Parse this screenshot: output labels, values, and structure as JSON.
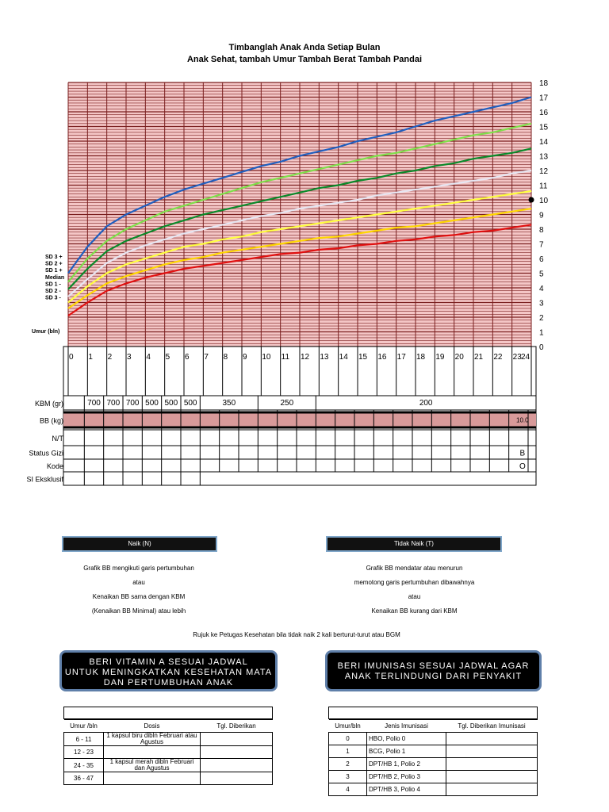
{
  "header": {
    "line1": "Timbanglah Anak Anda Setiap Bulan",
    "line2": "Anak Sehat, tambah Umur Tambah Berat Tambah Pandai"
  },
  "chart_data": {
    "type": "line",
    "xlabel": "Umur (bln)",
    "ylabel": "",
    "xlim": [
      0,
      24
    ],
    "ylim": [
      0,
      18
    ],
    "x_ticks": [
      "0",
      "1",
      "2",
      "3",
      "4",
      "5",
      "6",
      "7",
      "8",
      "9",
      "10",
      "11",
      "12",
      "13",
      "14",
      "15",
      "16",
      "17",
      "18",
      "19",
      "20",
      "21",
      "22",
      "23",
      "24"
    ],
    "y_ticks": [
      "0",
      "1",
      "2",
      "3",
      "4",
      "5",
      "6",
      "7",
      "8",
      "9",
      "10",
      "11",
      "12",
      "13",
      "14",
      "15",
      "16",
      "17",
      "18"
    ],
    "curve_labels": [
      "SD 3 +",
      "SD 2 +",
      "SD 1 +",
      "Median",
      "SD 1 -",
      "SD 2 -",
      "SD 3 -"
    ],
    "x": [
      0,
      1,
      2,
      3,
      4,
      5,
      6,
      7,
      8,
      9,
      10,
      11,
      12,
      13,
      14,
      15,
      16,
      17,
      18,
      19,
      20,
      21,
      22,
      23,
      24
    ],
    "series": [
      {
        "name": "SD 3 +",
        "color": "#1f5fbf",
        "values": [
          5.0,
          6.8,
          8.2,
          9.0,
          9.6,
          10.2,
          10.7,
          11.1,
          11.5,
          11.9,
          12.3,
          12.6,
          13.0,
          13.3,
          13.6,
          14.0,
          14.3,
          14.6,
          15.0,
          15.4,
          15.7,
          16.0,
          16.3,
          16.6,
          17.0
        ]
      },
      {
        "name": "SD 2 +",
        "color": "#7ee04a",
        "values": [
          4.4,
          6.0,
          7.2,
          8.0,
          8.6,
          9.2,
          9.6,
          10.0,
          10.4,
          10.8,
          11.2,
          11.5,
          11.8,
          12.1,
          12.4,
          12.7,
          13.0,
          13.2,
          13.5,
          13.8,
          14.1,
          14.4,
          14.6,
          14.9,
          15.2
        ]
      },
      {
        "name": "SD 1 +",
        "color": "#0a8a2a",
        "values": [
          3.9,
          5.3,
          6.5,
          7.2,
          7.7,
          8.2,
          8.6,
          9.0,
          9.3,
          9.6,
          9.9,
          10.2,
          10.5,
          10.8,
          11.0,
          11.3,
          11.5,
          11.8,
          12.0,
          12.3,
          12.5,
          12.8,
          13.0,
          13.2,
          13.5
        ]
      },
      {
        "name": "Median",
        "color": "#e6e6f2",
        "values": [
          3.4,
          4.6,
          5.7,
          6.4,
          6.9,
          7.3,
          7.7,
          8.0,
          8.3,
          8.6,
          8.9,
          9.1,
          9.4,
          9.6,
          9.8,
          10.0,
          10.3,
          10.5,
          10.7,
          10.9,
          11.1,
          11.3,
          11.5,
          11.8,
          12.0
        ]
      },
      {
        "name": "SD 1 -",
        "color": "#ffff40",
        "values": [
          3.0,
          4.1,
          5.0,
          5.6,
          6.0,
          6.4,
          6.8,
          7.0,
          7.3,
          7.5,
          7.8,
          8.0,
          8.2,
          8.4,
          8.6,
          8.8,
          9.0,
          9.2,
          9.4,
          9.6,
          9.8,
          10.0,
          10.2,
          10.4,
          10.6
        ]
      },
      {
        "name": "SD 2 -",
        "color": "#ffd700",
        "values": [
          2.6,
          3.5,
          4.3,
          4.8,
          5.2,
          5.6,
          5.9,
          6.1,
          6.4,
          6.6,
          6.8,
          7.0,
          7.2,
          7.4,
          7.5,
          7.7,
          7.9,
          8.1,
          8.2,
          8.4,
          8.6,
          8.8,
          9.0,
          9.2,
          9.4
        ]
      },
      {
        "name": "SD 3 -",
        "color": "#e01010",
        "values": [
          2.1,
          3.0,
          3.8,
          4.3,
          4.7,
          5.0,
          5.3,
          5.5,
          5.7,
          5.9,
          6.1,
          6.3,
          6.4,
          6.6,
          6.7,
          6.9,
          7.0,
          7.2,
          7.3,
          7.5,
          7.6,
          7.8,
          7.9,
          8.1,
          8.3
        ]
      }
    ],
    "marker": {
      "x": 24,
      "y": 10
    },
    "grid": true,
    "background": "#f4c6c6",
    "grid_color": "#7a1f1f"
  },
  "rows": {
    "kbm_label": "KBM (gr)",
    "kbm_cells": [
      "700",
      "700",
      "700",
      "500",
      "500",
      "500",
      "350",
      "250",
      "200"
    ],
    "bb_label": "BB (kg)",
    "bb_value": "10.0",
    "nt_label": "N/T",
    "status_label": "Status Gizi",
    "status_value": "B",
    "kode_label": "Kode",
    "kode_value": "O",
    "si_label": "SI Eksklusif"
  },
  "legend": {
    "naik_label": "Naik (N)",
    "tidak_naik_label": "Tidak Naik (T)",
    "naik_text": [
      "Grafik BB mengikuti garis pertumbuhan",
      "atau",
      "Kenaikan BB sama dengan KBM",
      "(Kenaikan BB Minimal) atau lebih"
    ],
    "tidak_text": [
      "Grafik BB mendatar atau menurun",
      "memotong garis pertumbuhan dibawahnya",
      "atau",
      "Kenaikan BB kurang dari KBM"
    ],
    "rujuk": "Rujuk ke Petugas Kesehatan bila tidak naik 2 kali berturut-turut atau BGM"
  },
  "vitamin": {
    "line1": "BERI VITAMIN A SESUAI JADWAL",
    "line2": "UNTUK MENINGKATKAN KESEHATAN MATA",
    "line3": "DAN PERTUMBUHAN ANAK",
    "col1": "Umur /bln",
    "col2": "Dosis",
    "col3": "Tgl. Diberikan",
    "rows": [
      {
        "umur": "6 - 11",
        "dosis": "1 kapsul biru dibln Februari atau Agustus"
      },
      {
        "umur": "12 - 23",
        "dosis": ""
      },
      {
        "umur": "24 - 35",
        "dosis": "1 kapsul merah dibln Februari dan Agustus"
      },
      {
        "umur": "36 - 47",
        "dosis": ""
      }
    ]
  },
  "imunisasi": {
    "line1": "BERI IMUNISASI SESUAI JADWAL AGAR",
    "line2": "ANAK TERLINDUNGI DARI PENYAKIT",
    "col1": "Umur/bln",
    "col2": "Jenis Imunisasi",
    "col3": "Tgl. Diberikan Imunisasi",
    "rows": [
      {
        "umur": "0",
        "jenis": "HBO, Polio 0"
      },
      {
        "umur": "1",
        "jenis": "BCG, Polio 1"
      },
      {
        "umur": "2",
        "jenis": "DPT/HB 1, Polio 2"
      },
      {
        "umur": "3",
        "jenis": "DPT/HB 2, Polio 3"
      },
      {
        "umur": "4",
        "jenis": "DPT/HB 3, Polio 4"
      }
    ]
  }
}
